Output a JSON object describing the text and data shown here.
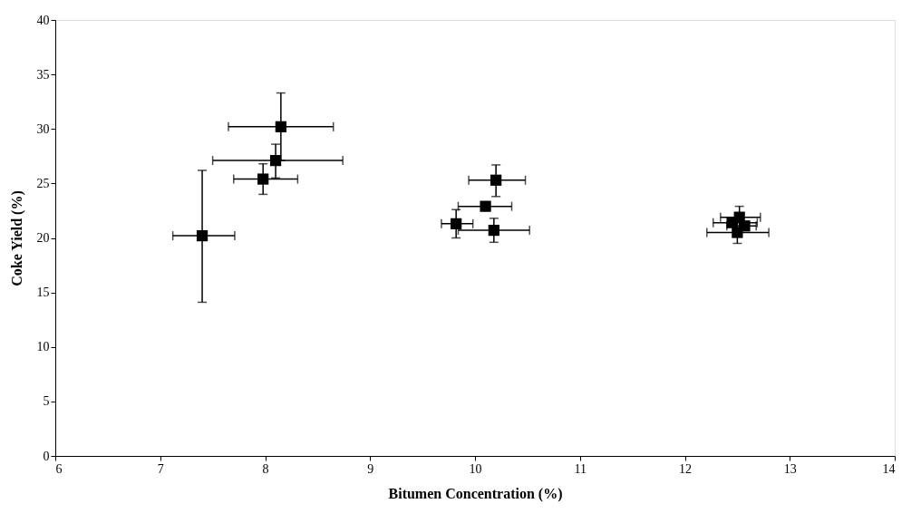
{
  "chart_data": {
    "type": "scatter",
    "xlabel": "Bitumen Concentration (%)",
    "ylabel": "Coke Yield (%)",
    "x": [
      7.4,
      7.98,
      8.1,
      8.15,
      10.2,
      10.1,
      9.82,
      10.18,
      12.45,
      12.52,
      12.57,
      12.5
    ],
    "values": [
      20.2,
      25.4,
      27.1,
      30.2,
      25.3,
      22.9,
      21.3,
      20.7,
      21.4,
      21.9,
      21.1,
      20.5
    ],
    "errors": [
      [
        14.1,
        26.2
      ],
      [
        24.0,
        26.8
      ],
      [
        25.5,
        28.6
      ],
      [
        27.1,
        33.3
      ],
      [
        23.8,
        26.7
      ],
      null,
      [
        20.0,
        22.6
      ],
      [
        19.6,
        21.8
      ],
      null,
      [
        20.9,
        22.9
      ],
      null,
      [
        19.5,
        21.5
      ]
    ],
    "xerrors": [
      [
        7.12,
        7.71
      ],
      [
        7.7,
        8.31
      ],
      [
        7.5,
        8.74
      ],
      [
        7.65,
        8.65
      ],
      [
        9.94,
        10.48
      ],
      [
        9.84,
        10.35
      ],
      [
        9.68,
        9.98
      ],
      [
        9.84,
        10.52
      ],
      [
        12.27,
        12.69
      ],
      [
        12.34,
        12.72
      ],
      [
        12.4,
        12.68
      ],
      [
        12.21,
        12.8
      ]
    ],
    "color": "#000000",
    "marker": "square",
    "xlim": [
      6,
      14
    ],
    "xticks": [
      6,
      7,
      8,
      9,
      10,
      11,
      12,
      13,
      14
    ],
    "ylim": [
      0,
      40
    ],
    "yticks": [
      0,
      5,
      10,
      15,
      20,
      25,
      30,
      35,
      40
    ],
    "grid": false
  }
}
